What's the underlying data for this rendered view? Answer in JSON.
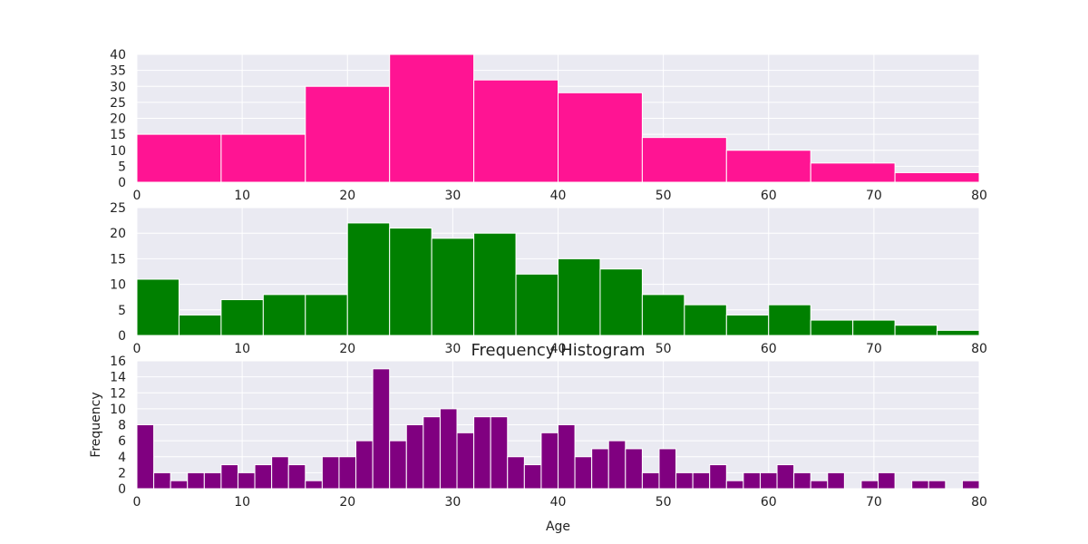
{
  "chart_data": [
    {
      "type": "bar",
      "title": "",
      "xlabel": "",
      "ylabel": "",
      "xlim": [
        0,
        80
      ],
      "ylim": [
        0,
        40
      ],
      "grid": true,
      "color": "#ff1493",
      "background": "#eaeaf2",
      "x_ticks": [
        0,
        10,
        20,
        30,
        40,
        50,
        60,
        70,
        80
      ],
      "y_ticks": [
        0,
        5,
        10,
        15,
        20,
        25,
        30,
        35,
        40
      ],
      "bin_edges": [
        0,
        8,
        16,
        24,
        32,
        40,
        48,
        56,
        64,
        72,
        80
      ],
      "values": [
        15,
        15,
        30,
        40,
        32,
        28,
        14,
        10,
        6,
        3
      ]
    },
    {
      "type": "bar",
      "title": "",
      "xlabel": "",
      "ylabel": "",
      "xlim": [
        0,
        80
      ],
      "ylim": [
        0,
        25
      ],
      "grid": true,
      "color": "#008000",
      "background": "#eaeaf2",
      "x_ticks": [
        0,
        10,
        20,
        30,
        40,
        50,
        60,
        70,
        80
      ],
      "y_ticks": [
        0,
        5,
        10,
        15,
        20,
        25
      ],
      "bin_edges": [
        0,
        4,
        8,
        12,
        16,
        20,
        24,
        28,
        32,
        36,
        40,
        44,
        48,
        52,
        56,
        60,
        64,
        68,
        72,
        76,
        80
      ],
      "values": [
        11,
        4,
        7,
        8,
        8,
        22,
        21,
        19,
        20,
        12,
        15,
        13,
        8,
        6,
        4,
        6,
        3,
        3,
        2,
        1
      ]
    },
    {
      "type": "bar",
      "title": "Frequency Histogram",
      "xlabel": "Age",
      "ylabel": "Frequency",
      "xlim": [
        0,
        80
      ],
      "ylim": [
        0,
        16
      ],
      "grid": true,
      "color": "#800080",
      "background": "#eaeaf2",
      "x_ticks": [
        0,
        10,
        20,
        30,
        40,
        50,
        60,
        70,
        80
      ],
      "y_ticks": [
        0,
        2,
        4,
        6,
        8,
        10,
        12,
        14,
        16
      ],
      "bin_width": 1.6,
      "values": [
        8,
        2,
        1,
        2,
        2,
        3,
        2,
        3,
        4,
        3,
        1,
        4,
        4,
        6,
        15,
        6,
        8,
        9,
        10,
        7,
        9,
        9,
        4,
        3,
        7,
        8,
        4,
        5,
        6,
        5,
        2,
        5,
        2,
        2,
        3,
        1,
        2,
        2,
        3,
        2,
        1,
        2,
        0,
        1,
        2,
        0,
        1,
        1,
        0,
        1
      ]
    }
  ]
}
